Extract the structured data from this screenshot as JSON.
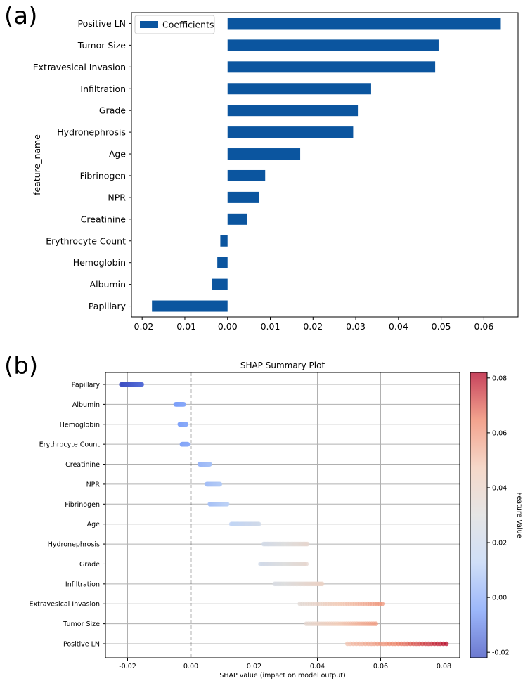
{
  "panel_labels": {
    "a": "(a)",
    "b": "(b)"
  },
  "chart_data": [
    {
      "type": "bar",
      "orientation": "horizontal",
      "title": "",
      "ylabel": "feature_name",
      "xlabel": "",
      "legend": {
        "label": "Coefficients",
        "position": "top-left"
      },
      "color": "#0b559f",
      "categories": [
        "Positive LN",
        "Tumor Size",
        "Extravesical Invasion",
        "Infiltration",
        "Grade",
        "Hydronephrosis",
        "Age",
        "Fibrinogen",
        "NPR",
        "Creatinine",
        "Erythrocyte Count",
        "Hemoglobin",
        "Albumin",
        "Papillary"
      ],
      "values": [
        0.0638,
        0.0494,
        0.0486,
        0.0336,
        0.0305,
        0.0294,
        0.017,
        0.0088,
        0.0073,
        0.0046,
        -0.0017,
        -0.0024,
        -0.0036,
        -0.0177
      ],
      "xlim": [
        -0.0225,
        0.068
      ],
      "xticks": [
        -0.02,
        -0.01,
        0.0,
        0.01,
        0.02,
        0.03,
        0.04,
        0.05,
        0.06
      ],
      "xtick_labels": [
        "-0.02",
        "-0.01",
        "0.00",
        "0.01",
        "0.02",
        "0.03",
        "0.04",
        "0.05",
        "0.06"
      ]
    },
    {
      "type": "scatter",
      "title": "SHAP Summary Plot",
      "xlabel": "SHAP value (impact on model output)",
      "ylabel": "",
      "grid": true,
      "reference_line": 0.0,
      "categories": [
        "Papillary",
        "Albumin",
        "Hemoglobin",
        "Erythrocyte Count",
        "Creatinine",
        "NPR",
        "Fibrinogen",
        "Age",
        "Hydronephrosis",
        "Grade",
        "Infiltration",
        "Extravesical Invasion",
        "Tumor Size",
        "Positive LN"
      ],
      "ranges": [
        [
          -0.022,
          -0.0155
        ],
        [
          -0.0048,
          -0.0022
        ],
        [
          -0.0035,
          -0.0015
        ],
        [
          -0.0028,
          -0.001
        ],
        [
          0.0028,
          0.006
        ],
        [
          0.005,
          0.0092
        ],
        [
          0.006,
          0.0115
        ],
        [
          0.0128,
          0.0215
        ],
        [
          0.023,
          0.0368
        ],
        [
          0.022,
          0.0365
        ],
        [
          0.0265,
          0.0415
        ],
        [
          0.0345,
          0.0605
        ],
        [
          0.0365,
          0.0585
        ],
        [
          0.0495,
          0.0808
        ]
      ],
      "xlim": [
        -0.027,
        0.085
      ],
      "xticks": [
        -0.02,
        0.0,
        0.02,
        0.04,
        0.06,
        0.08
      ],
      "xtick_labels": [
        "-0.02",
        "0.00",
        "0.02",
        "0.04",
        "0.06",
        "0.08"
      ],
      "colorbar": {
        "label": "Feature Value",
        "min": -0.022,
        "max": 0.082,
        "ticks": [
          -0.02,
          0.0,
          0.02,
          0.04,
          0.06,
          0.08
        ],
        "tick_labels": [
          "-0.02",
          "0.00",
          "0.02",
          "0.04",
          "0.06",
          "0.08"
        ],
        "colormap": [
          "#3b4cc0",
          "#7b9ff9",
          "#c0d4f5",
          "#dddddd",
          "#f2cbb7",
          "#ee8468",
          "#b40426"
        ]
      }
    }
  ]
}
